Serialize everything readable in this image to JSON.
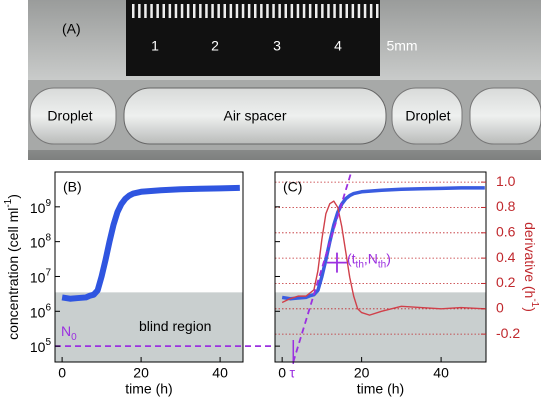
{
  "photo": {
    "panel_label": "(A)",
    "ruler_numbers": [
      "1",
      "2",
      "3",
      "4",
      "5mm"
    ],
    "labels": [
      "Droplet",
      "Air spacer",
      "Droplet"
    ]
  },
  "chart_data": [
    {
      "type": "line",
      "panel_label": "(B)",
      "log_y": true,
      "xlabel": "time (h)",
      "ylabel": {
        "text": "concentration (cell ml",
        "sup": "-1",
        "end": ")"
      },
      "xlim": [
        -1.8,
        45.8
      ],
      "xticks": [
        0,
        20,
        40
      ],
      "ylim": [
        35000,
        10000000000
      ],
      "yticks": [
        {
          "value": 100000,
          "label": "10",
          "exponent": "5"
        },
        {
          "value": 1000000,
          "label": "10",
          "exponent": "6"
        },
        {
          "value": 10000000,
          "label": "10",
          "exponent": "7"
        },
        {
          "value": 100000000,
          "label": "10",
          "exponent": "8"
        },
        {
          "value": 1000000000,
          "label": "10",
          "exponent": "9"
        }
      ],
      "blind_region": {
        "label": "blind region",
        "upper": 3500000,
        "color": "#c9cfcf"
      },
      "n0": {
        "label": "N",
        "sub": "0",
        "value": 100000,
        "color": "#9b30e0"
      },
      "series": [
        {
          "name": "concentration",
          "color": "#2f55e0",
          "x": [
            0,
            2,
            4,
            6,
            7,
            8,
            9,
            10,
            11,
            12,
            13,
            14,
            15,
            16,
            17,
            18,
            20,
            25,
            30,
            35,
            40,
            45
          ],
          "values": [
            2500000,
            2300000,
            2400000,
            2500000,
            2800000,
            3000000,
            4000000,
            10000000,
            30000000,
            100000000,
            300000000,
            700000000,
            1200000000,
            1700000000,
            2100000000,
            2400000000,
            2700000000,
            3000000000,
            3200000000,
            3300000000,
            3400000000,
            3500000000
          ]
        }
      ]
    },
    {
      "type": "line",
      "panel_label": "(C)",
      "log_y": true,
      "xlabel": "time (h)",
      "y2label": {
        "text": "derivative (h",
        "sup": "-1",
        "end": ")"
      },
      "xlim": [
        -1.8,
        51.3
      ],
      "xticks": [
        0,
        20,
        40
      ],
      "ylim": [
        35000,
        10000000000
      ],
      "yticks": [
        100000,
        1000000,
        10000000,
        100000000,
        1000000000
      ],
      "y2lim": [
        -0.42,
        1.08
      ],
      "y2ticks": [
        {
          "value": 1,
          "label": "1.0"
        },
        0.8,
        0.6,
        0.4,
        0.2,
        0,
        -0.2
      ],
      "y2color": "#c0282d",
      "grid": true,
      "blind_region": {
        "upper": 3500000,
        "color": "#c9cfcf"
      },
      "tangent": {
        "x": [
          2.8,
          17.4
        ],
        "y": [
          35000,
          10000000000
        ],
        "color": "#9b30e0"
      },
      "tau": {
        "label": "τ",
        "value": 2.8
      },
      "threshold": {
        "t": 13.8,
        "n": 25000000,
        "parts": [
          "(t",
          "th",
          ",N",
          "th",
          ")"
        ]
      },
      "series": [
        {
          "name": "concentration",
          "color": "#3a5ce0",
          "x": [
            0,
            2,
            4,
            6,
            7,
            8,
            9,
            10,
            11,
            12,
            13,
            14,
            15,
            16,
            17,
            18,
            20,
            25,
            30,
            35,
            40,
            45,
            51
          ],
          "values": [
            2500000,
            2300000,
            2400000,
            2500000,
            2800000,
            3000000,
            4000000,
            10000000,
            30000000,
            100000000,
            300000000,
            700000000,
            1200000000,
            1700000000,
            2100000000,
            2400000000,
            2700000000,
            3000000000,
            3200000000,
            3300000000,
            3400000000,
            3500000000,
            3500000000
          ]
        },
        {
          "name": "derivative",
          "color": "#d0404a",
          "axis": "y2",
          "x": [
            0,
            2,
            4,
            6,
            8,
            9,
            10,
            11,
            12,
            13,
            14,
            15,
            16,
            17,
            18,
            19,
            20,
            22,
            25,
            30,
            35,
            40,
            45,
            51
          ],
          "values": [
            0.05,
            0.08,
            0.1,
            0.1,
            0.15,
            0.3,
            0.55,
            0.75,
            0.83,
            0.85,
            0.8,
            0.65,
            0.45,
            0.25,
            0.1,
            0,
            -0.03,
            -0.05,
            -0.02,
            0.02,
            0.01,
            0,
            0.01,
            0
          ]
        }
      ]
    }
  ]
}
